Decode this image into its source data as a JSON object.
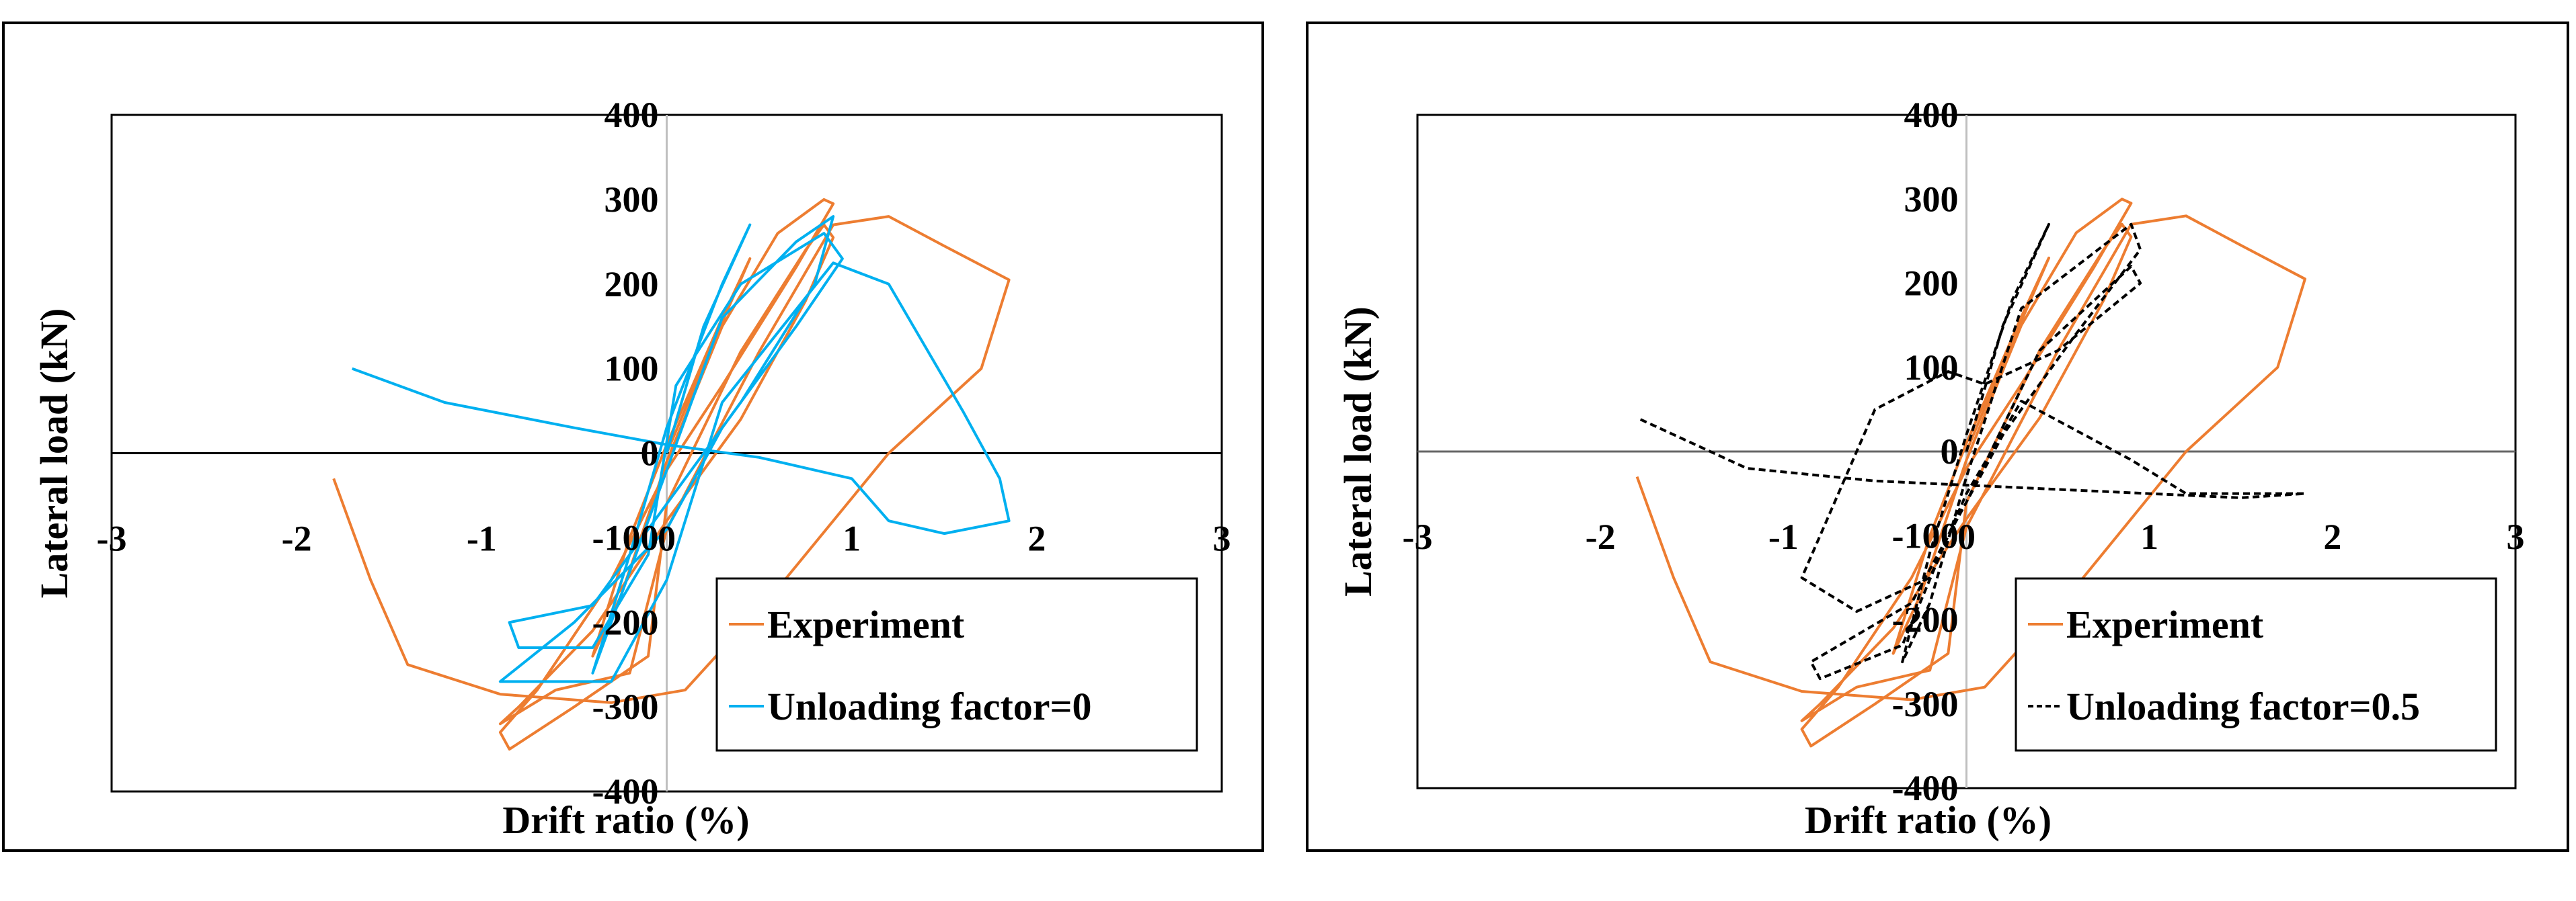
{
  "chart_data": [
    {
      "type": "line",
      "xlabel": "Drift ratio (%)",
      "ylabel": "Lateral load (kN)",
      "xlim": [
        -3,
        3
      ],
      "ylim": [
        -400,
        400
      ],
      "xticks": [
        "-3",
        "-2",
        "-1",
        "0",
        "1",
        "2",
        "3"
      ],
      "yticks": [
        "-400",
        "-300",
        "-200",
        "-100",
        "0",
        "100",
        "200",
        "300",
        "400"
      ],
      "grid": false,
      "legend": "bottom-right",
      "series": [
        {
          "name": "Experiment",
          "color": "#ED7D31",
          "dash": "solid",
          "x": [
            0,
            0.25,
            0.45,
            0.3,
            0,
            -0.2,
            -0.4,
            -0.25,
            0,
            0.3,
            0.6,
            0.85,
            0.9,
            0.7,
            0.3,
            0,
            -0.3,
            -0.7,
            -0.9,
            -0.85,
            -0.5,
            -0.1,
            0,
            0.4,
            0.75,
            0.85,
            0.9,
            0.75,
            0.4,
            0,
            -0.4,
            -0.8,
            -0.9,
            -0.6,
            -0.2,
            0,
            0.5,
            0.9,
            1.2,
            1.5,
            1.85,
            1.7,
            1.2,
            0.6,
            0.1,
            -0.3,
            -0.9,
            -1.4,
            -1.6,
            -1.8
          ],
          "y": [
            0,
            130,
            230,
            160,
            10,
            -100,
            -240,
            -170,
            -10,
            150,
            260,
            300,
            295,
            220,
            80,
            -20,
            -150,
            -280,
            -330,
            -350,
            -300,
            -240,
            -60,
            120,
            240,
            270,
            255,
            180,
            40,
            -80,
            -210,
            -300,
            -320,
            -280,
            -260,
            -90,
            120,
            270,
            280,
            245,
            205,
            100,
            0,
            -160,
            -280,
            -295,
            -285,
            -250,
            -150,
            -30
          ]
        },
        {
          "name": "Unloading factor=0",
          "color": "#00B0F0",
          "dash": "solid",
          "x": [
            0,
            0.2,
            0.45,
            0.3,
            0,
            -0.2,
            -0.4,
            -0.3,
            0,
            0.3,
            0.7,
            0.9,
            0.8,
            0.4,
            0,
            -0.4,
            -0.85,
            -0.8,
            -0.4,
            -0.1,
            0.05,
            0.4,
            0.85,
            0.95,
            0.7,
            0.3,
            0,
            -0.5,
            -0.9,
            -0.85,
            -0.3,
            0,
            0.3,
            0.9,
            1.2,
            1.6,
            1.8,
            1.85,
            1.5,
            1.2,
            1.0,
            0.5,
            0,
            -0.5,
            -1.2,
            -1.7
          ],
          "y": [
            0,
            150,
            270,
            200,
            30,
            -120,
            -260,
            -200,
            -20,
            160,
            250,
            280,
            200,
            60,
            -60,
            -180,
            -200,
            -230,
            -230,
            -120,
            80,
            200,
            260,
            230,
            150,
            30,
            -90,
            -200,
            -270,
            -270,
            -270,
            -150,
            60,
            225,
            200,
            50,
            -30,
            -80,
            -95,
            -80,
            -30,
            -5,
            10,
            30,
            60,
            100
          ]
        }
      ]
    },
    {
      "type": "line",
      "xlabel": "Drift ratio (%)",
      "ylabel": "Lateral load (kN)",
      "xlim": [
        -3,
        3
      ],
      "ylim": [
        -400,
        400
      ],
      "xticks": [
        "-3",
        "-2",
        "-1",
        "0",
        "1",
        "2",
        "3"
      ],
      "yticks": [
        "-400",
        "-300",
        "-200",
        "-100",
        "0",
        "100",
        "200",
        "300",
        "400"
      ],
      "grid": false,
      "legend": "bottom-right",
      "series": [
        {
          "name": "Experiment",
          "color": "#ED7D31",
          "dash": "solid",
          "x": [
            0,
            0.25,
            0.45,
            0.3,
            0,
            -0.2,
            -0.4,
            -0.25,
            0,
            0.3,
            0.6,
            0.85,
            0.9,
            0.7,
            0.3,
            0,
            -0.3,
            -0.7,
            -0.9,
            -0.85,
            -0.5,
            -0.1,
            0,
            0.4,
            0.75,
            0.85,
            0.9,
            0.75,
            0.4,
            0,
            -0.4,
            -0.8,
            -0.9,
            -0.6,
            -0.2,
            0,
            0.5,
            0.9,
            1.2,
            1.5,
            1.85,
            1.7,
            1.2,
            0.6,
            0.1,
            -0.3,
            -0.9,
            -1.4,
            -1.6,
            -1.8
          ],
          "y": [
            0,
            130,
            230,
            160,
            10,
            -100,
            -240,
            -170,
            -10,
            150,
            260,
            300,
            295,
            220,
            80,
            -20,
            -150,
            -280,
            -330,
            -350,
            -300,
            -240,
            -60,
            120,
            240,
            270,
            255,
            180,
            40,
            -80,
            -210,
            -300,
            -320,
            -280,
            -260,
            -90,
            120,
            270,
            280,
            245,
            205,
            100,
            0,
            -160,
            -280,
            -295,
            -285,
            -250,
            -150,
            -30
          ]
        },
        {
          "name": "Unloading factor=0.5",
          "color": "#000000",
          "dash": "dashed",
          "x": [
            0,
            0.2,
            0.45,
            0.25,
            0,
            -0.2,
            -0.35,
            -0.2,
            0,
            0.3,
            0.9,
            0.95,
            0.6,
            0.2,
            -0.1,
            -0.35,
            -0.8,
            -0.85,
            -0.3,
            0,
            0.4,
            0.9,
            0.95,
            0.5,
            0.1,
            -0.1,
            -0.5,
            -0.9,
            -0.6,
            -0.2,
            0,
            0.3,
            0.9,
            1.2,
            1.85,
            1.5,
            0.5,
            0,
            -0.5,
            -1.2,
            -1.8
          ],
          "y": [
            0,
            150,
            270,
            180,
            20,
            -120,
            -250,
            -180,
            -30,
            170,
            270,
            240,
            140,
            20,
            -100,
            -230,
            -270,
            -250,
            -180,
            -60,
            120,
            220,
            200,
            120,
            80,
            95,
            50,
            -150,
            -190,
            -150,
            -50,
            60,
            -10,
            -50,
            -50,
            -55,
            -45,
            -40,
            -35,
            -20,
            40
          ]
        }
      ]
    }
  ]
}
